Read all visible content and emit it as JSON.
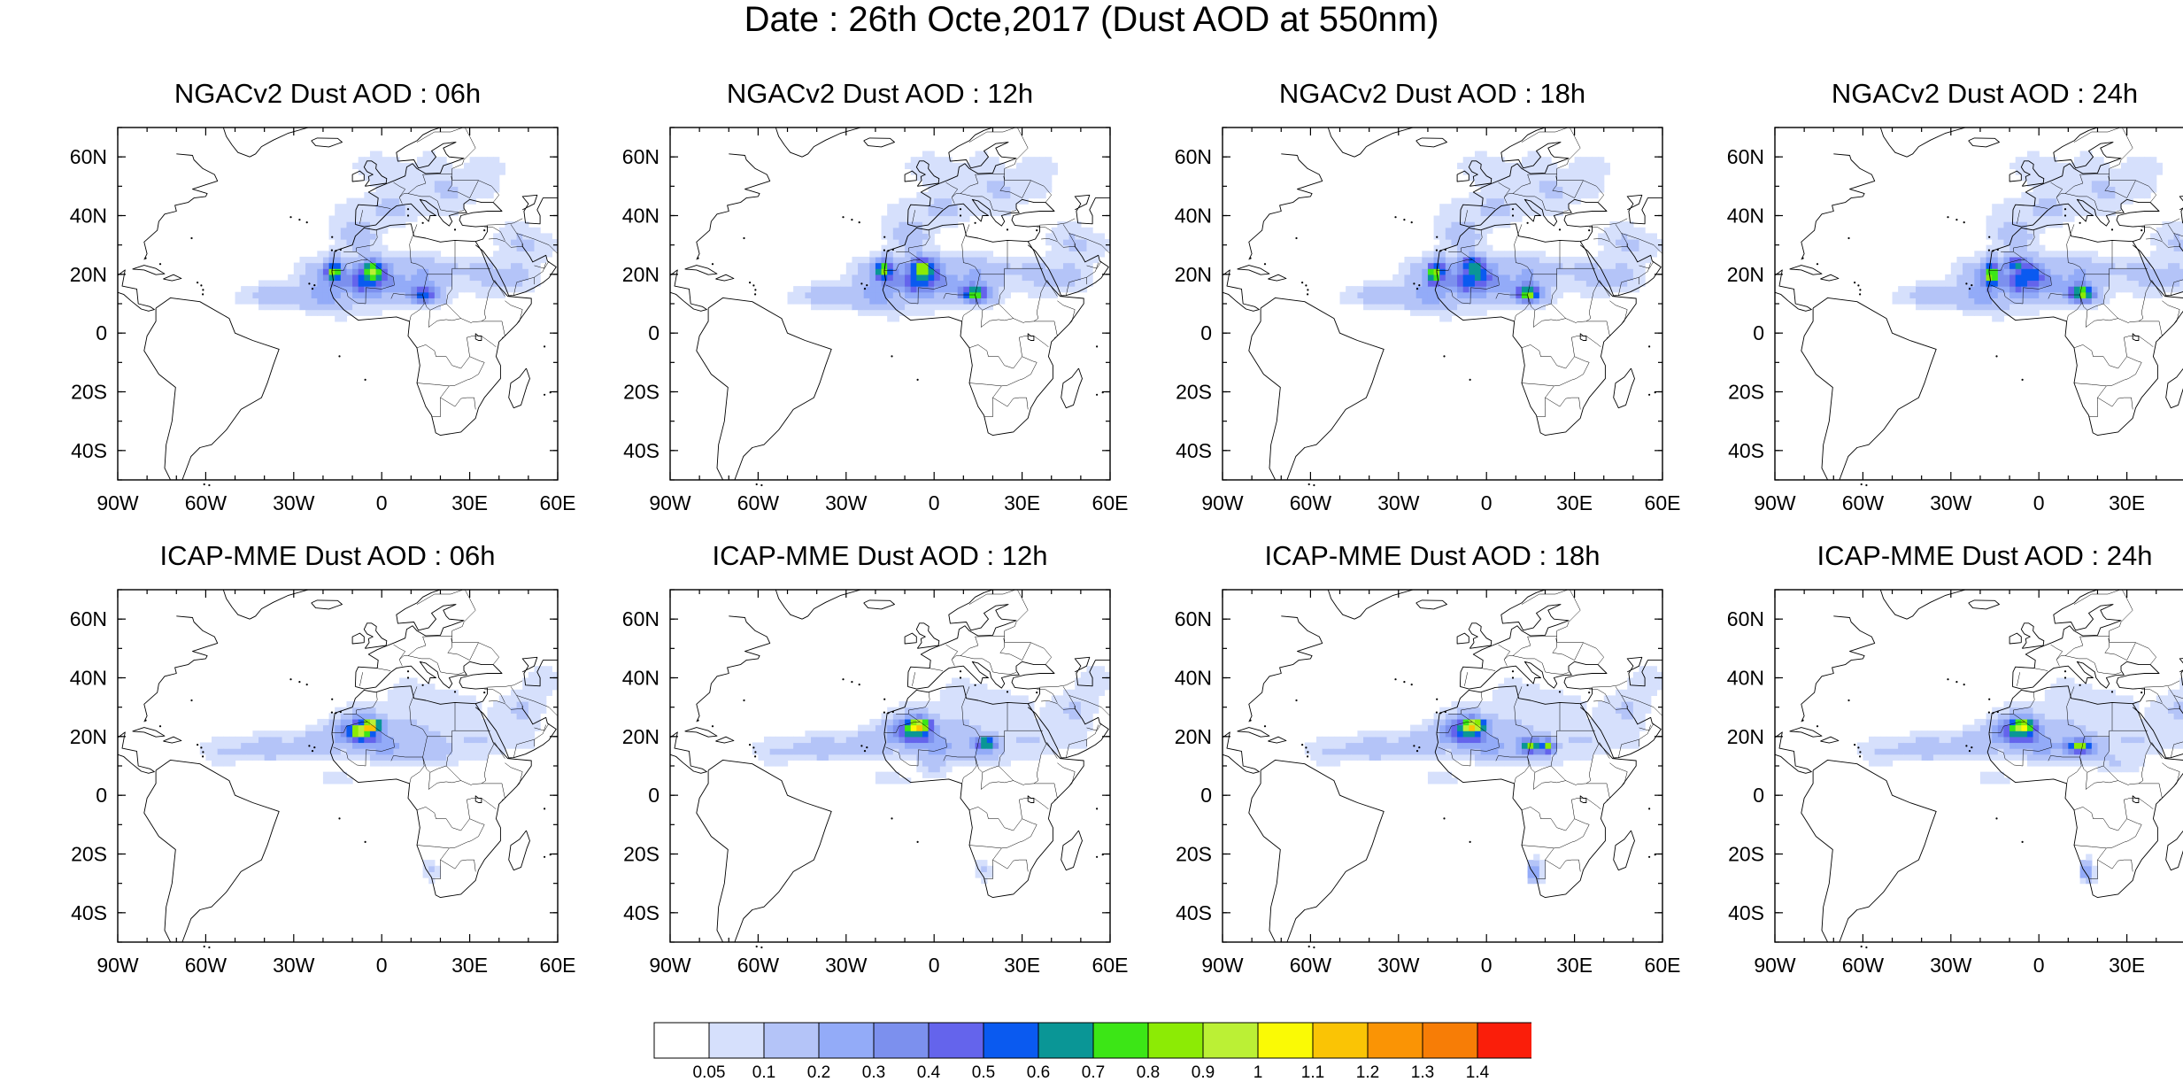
{
  "title": "Date : 26th Octe,2017 (Dust AOD at 550nm)",
  "panels": [
    {
      "title": "NGACv2 Dust AOD : 06h",
      "model": "NGACv2",
      "hour": "06h"
    },
    {
      "title": "NGACv2 Dust AOD : 12h",
      "model": "NGACv2",
      "hour": "12h"
    },
    {
      "title": "NGACv2 Dust AOD : 18h",
      "model": "NGACv2",
      "hour": "18h"
    },
    {
      "title": "NGACv2 Dust AOD : 24h",
      "model": "NGACv2",
      "hour": "24h"
    },
    {
      "title": "ICAP-MME Dust AOD : 06h",
      "model": "ICAP-MME",
      "hour": "06h"
    },
    {
      "title": "ICAP-MME Dust AOD : 12h",
      "model": "ICAP-MME",
      "hour": "12h"
    },
    {
      "title": "ICAP-MME Dust AOD : 18h",
      "model": "ICAP-MME",
      "hour": "18h"
    },
    {
      "title": "ICAP-MME Dust AOD : 24h",
      "model": "ICAP-MME",
      "hour": "24h"
    }
  ],
  "map": {
    "lon_range": [
      -90,
      60
    ],
    "lat_range": [
      -50,
      70
    ],
    "lon_ticks": [
      -90,
      -60,
      -30,
      0,
      30,
      60
    ],
    "lon_labels": [
      "90W",
      "60W",
      "30W",
      "0",
      "30E",
      "60E"
    ],
    "lat_ticks": [
      60,
      40,
      20,
      0,
      -20,
      -40
    ],
    "lat_labels": [
      "60N",
      "40N",
      "20N",
      "0",
      "20S",
      "40S"
    ]
  },
  "colorbar": {
    "labels": [
      "0.05",
      "0.1",
      "0.2",
      "0.3",
      "0.4",
      "0.5",
      "0.6",
      "0.7",
      "0.8",
      "0.9",
      "1",
      "1.1",
      "1.2",
      "1.3",
      "1.4"
    ],
    "colors": [
      "#ffffff",
      "#d6e0fc",
      "#b4c4f8",
      "#93abf8",
      "#7c90ee",
      "#6464ec",
      "#0a5af0",
      "#0a9696",
      "#3ce616",
      "#8ceb05",
      "#bbf035",
      "#fafa05",
      "#fac405",
      "#fa9405",
      "#f77d06",
      "#fa1e0a"
    ]
  }
}
